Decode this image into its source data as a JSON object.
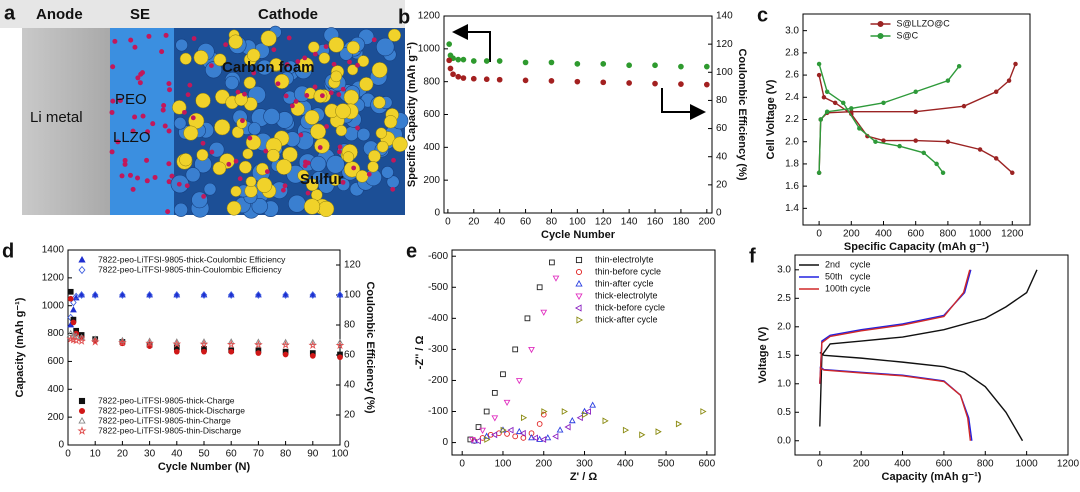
{
  "panel_a": {
    "panel": "a",
    "labels": {
      "anode": "Anode",
      "se": "SE",
      "cathode": "Cathode",
      "li_metal": "Li metal",
      "peo": "PEO",
      "llzo": "LLZO",
      "carbon_foam": "Carbon foam",
      "sulfur": "Sulfur"
    }
  },
  "chart_data": [
    {
      "type": "scatter",
      "panel": "b",
      "xlabel": "Cycle Number",
      "ylabel": "Specific Capacity (mAh g⁻¹)",
      "y2label": "Coulombic Efficiency (%)",
      "xlim": [
        -3,
        204
      ],
      "xticks": [
        0,
        20,
        40,
        60,
        80,
        100,
        120,
        140,
        160,
        180,
        200
      ],
      "ylim": [
        0,
        1200
      ],
      "yticks": [
        0,
        200,
        400,
        600,
        800,
        1000,
        1200
      ],
      "y2lim": [
        0,
        140
      ],
      "y2ticks": [
        0,
        20,
        40,
        60,
        80,
        100,
        120,
        140
      ],
      "series": [
        {
          "color": "#2e9a2e",
          "marker": "circle",
          "filled": true,
          "axis": "y2",
          "x": [
            1,
            2,
            4,
            8,
            12,
            20,
            30,
            40,
            60,
            80,
            100,
            120,
            140,
            160,
            180,
            200
          ],
          "values": [
            120,
            112,
            110,
            109,
            109,
            108,
            108,
            108,
            107,
            107,
            106,
            106,
            105,
            105,
            104,
            104
          ]
        },
        {
          "color": "#a32020",
          "marker": "circle",
          "filled": true,
          "x": [
            1,
            2,
            4,
            8,
            12,
            20,
            30,
            40,
            60,
            80,
            100,
            120,
            140,
            160,
            180,
            200
          ],
          "values": [
            930,
            880,
            845,
            830,
            822,
            818,
            815,
            812,
            808,
            805,
            800,
            796,
            792,
            788,
            785,
            782
          ]
        }
      ]
    },
    {
      "type": "scatter",
      "panel": "c",
      "xlabel": "Specific Capacity (mAh g⁻¹)",
      "ylabel": "Cell Voltage (V)",
      "xlim": [
        -100,
        1310
      ],
      "xticks": [
        0,
        200,
        400,
        600,
        800,
        1000,
        1200
      ],
      "ylim": [
        1.25,
        3.15
      ],
      "yticks": [
        1.4,
        1.6,
        1.8,
        {
          "value": 2,
          "label": "2.0"
        },
        2.2,
        2.4,
        2.6,
        2.8,
        {
          "value": 3,
          "label": "3.0"
        }
      ],
      "legend_loc": "upper center",
      "series": [
        {
          "name": "S@LLZO@C",
          "color": "#9b2323",
          "marker": "circle",
          "filled": true,
          "line": true,
          "x": [
            0,
            30,
            100,
            200,
            300,
            400,
            600,
            800,
            1000,
            1100,
            1200,
            null,
            0,
            10,
            50,
            200,
            600,
            900,
            1100,
            1180,
            1220
          ],
          "values": [
            2.6,
            2.4,
            2.35,
            2.25,
            2.05,
            2.01,
            2.01,
            2.0,
            1.93,
            1.85,
            1.72,
            null,
            1.72,
            2.2,
            2.26,
            2.27,
            2.27,
            2.32,
            2.45,
            2.55,
            2.7
          ]
        },
        {
          "name": "S@C",
          "color": "#2e9a3a",
          "marker": "circle",
          "filled": true,
          "line": true,
          "x": [
            0,
            50,
            150,
            250,
            350,
            500,
            650,
            730,
            770,
            null,
            0,
            10,
            50,
            200,
            400,
            600,
            800,
            870
          ],
          "values": [
            2.7,
            2.45,
            2.35,
            2.12,
            2.0,
            1.96,
            1.9,
            1.8,
            1.72,
            null,
            1.72,
            2.2,
            2.27,
            2.3,
            2.35,
            2.45,
            2.55,
            2.68
          ]
        }
      ]
    },
    {
      "type": "scatter",
      "panel": "d",
      "xlabel": "Cycle Number (N)",
      "ylabel": "Capacity (mAh g⁻¹)",
      "y2label": "Coulombic Efficiency (%)",
      "xlim": [
        0,
        100
      ],
      "xticks": [
        0,
        10,
        20,
        30,
        40,
        50,
        60,
        70,
        80,
        90,
        100
      ],
      "ylim": [
        0,
        1400
      ],
      "yticks": [
        0,
        200,
        400,
        600,
        800,
        1000,
        1200,
        1400
      ],
      "y2lim": [
        0,
        130
      ],
      "y2ticks": [
        0,
        20,
        40,
        60,
        80,
        100,
        120
      ],
      "legend_loc": {
        "y2": "upper left",
        "y": "lower left"
      },
      "series": [
        {
          "name": "7822-peo-LiTFSI-9805-thick-Coulombic Efficiency",
          "color": "#1f2fd0",
          "marker": "triangle",
          "filled": true,
          "axis": "y2",
          "x": [
            1,
            2,
            3,
            5,
            10,
            20,
            30,
            40,
            50,
            60,
            70,
            80,
            90,
            100
          ],
          "values": [
            80,
            90,
            98,
            100,
            100,
            100,
            100,
            100,
            100,
            100,
            100,
            100,
            100,
            100
          ]
        },
        {
          "name": "7822-peo-LiTFSI-9805-thin-Coulombic Efficiency",
          "color": "#3f5fe0",
          "marker": "diamond",
          "filled": false,
          "axis": "y2",
          "x": [
            1,
            2,
            3,
            5,
            10,
            20,
            30,
            40,
            50,
            60,
            70,
            80,
            90,
            100
          ],
          "values": [
            85,
            95,
            99,
            100,
            100,
            100,
            100,
            100,
            100,
            100,
            100,
            100,
            100,
            100
          ]
        },
        {
          "name": "7822-peo-LiTFSI-9805-thick-Charge",
          "color": "#111111",
          "marker": "square",
          "filled": true,
          "x": [
            1,
            2,
            3,
            5,
            10,
            20,
            30,
            40,
            50,
            60,
            70,
            80,
            90,
            100
          ],
          "values": [
            1100,
            900,
            820,
            790,
            760,
            740,
            720,
            700,
            690,
            680,
            680,
            670,
            660,
            650
          ]
        },
        {
          "name": "7822-peo-LiTFSI-9805-thick-Discharge",
          "color": "#d01818",
          "marker": "circle",
          "filled": true,
          "x": [
            1,
            2,
            3,
            5,
            10,
            20,
            30,
            40,
            50,
            60,
            70,
            80,
            90,
            100
          ],
          "values": [
            1050,
            880,
            800,
            770,
            750,
            730,
            710,
            670,
            670,
            670,
            660,
            650,
            640,
            630
          ]
        },
        {
          "name": "7822-peo-LiTFSI-9805-thin-Charge",
          "color": "#888888",
          "marker": "triangle",
          "filled": false,
          "x": [
            1,
            2,
            3,
            5,
            10,
            20,
            30,
            40,
            50,
            60,
            70,
            80,
            90,
            100
          ],
          "values": [
            800,
            790,
            780,
            770,
            760,
            750,
            745,
            740,
            740,
            740,
            738,
            736,
            735,
            735
          ]
        },
        {
          "name": "7822-peo-LiTFSI-9805-thin-Discharge",
          "color": "#e05050",
          "marker": "star",
          "filled": false,
          "x": [
            1,
            2,
            3,
            5,
            10,
            20,
            30,
            40,
            50,
            60,
            70,
            80,
            90,
            100
          ],
          "values": [
            760,
            755,
            750,
            745,
            740,
            735,
            730,
            725,
            724,
            722,
            720,
            718,
            716,
            715
          ]
        }
      ]
    },
    {
      "type": "scatter",
      "panel": "e",
      "xlabel": "Z' / Ω",
      "ylabel": "-Z'' / Ω",
      "xlim": [
        -25,
        620
      ],
      "xticks": [
        0,
        100,
        200,
        300,
        400,
        500,
        600
      ],
      "ylim": [
        40,
        -620
      ],
      "yticks": [
        -600,
        -500,
        -400,
        -300,
        -200,
        -100,
        0
      ],
      "legend_loc": "upper right",
      "series": [
        {
          "name": "thin-electrolyte",
          "color": "#222222",
          "marker": "square",
          "filled": false,
          "x": [
            20,
            40,
            60,
            80,
            100,
            130,
            160,
            190,
            220
          ],
          "values": [
            -10,
            -50,
            -100,
            -160,
            -220,
            -300,
            -400,
            -500,
            -580
          ]
        },
        {
          "name": "thin-before cycle",
          "color": "#e02020",
          "marker": "circle",
          "filled": false,
          "x": [
            30,
            50,
            70,
            90,
            110,
            130,
            150,
            170,
            190,
            200
          ],
          "values": [
            -5,
            -15,
            -25,
            -30,
            -28,
            -20,
            -15,
            -30,
            -60,
            -90
          ]
        },
        {
          "name": "thin-after cycle",
          "color": "#2a3fe0",
          "marker": "triangle",
          "filled": false,
          "x": [
            30,
            60,
            100,
            140,
            170,
            190,
            210,
            240,
            270,
            300,
            320
          ],
          "values": [
            -5,
            -20,
            -40,
            -35,
            -15,
            -10,
            -15,
            -40,
            -70,
            -100,
            -120
          ]
        },
        {
          "name": "thick-electrolyte",
          "color": "#e030c0",
          "marker": "triangle-down",
          "filled": false,
          "x": [
            25,
            50,
            80,
            110,
            140,
            170,
            200,
            230
          ],
          "values": [
            -10,
            -40,
            -80,
            -130,
            -200,
            -300,
            -420,
            -530
          ]
        },
        {
          "name": "thick-before cycle",
          "color": "#8a20c0",
          "marker": "triangle-left",
          "filled": false,
          "x": [
            40,
            80,
            120,
            150,
            180,
            200,
            230,
            260,
            290,
            310
          ],
          "values": [
            -5,
            -25,
            -40,
            -30,
            -15,
            -10,
            -20,
            -50,
            -80,
            -100
          ]
        },
        {
          "name": "thick-after cycle",
          "color": "#8a8a10",
          "marker": "triangle-right",
          "filled": false,
          "x": [
            60,
            100,
            150,
            200,
            250,
            300,
            350,
            400,
            440,
            480,
            530,
            590
          ],
          "values": [
            -10,
            -40,
            -80,
            -100,
            -100,
            -90,
            -70,
            -40,
            -25,
            -35,
            -60,
            -100
          ]
        }
      ]
    },
    {
      "type": "line",
      "panel": "f",
      "xlabel": "Capacity (mAh g⁻¹)",
      "ylabel": "Voltage (V)",
      "xlim": [
        -120,
        1200
      ],
      "xticks": [
        0,
        200,
        400,
        600,
        800,
        1000,
        1200
      ],
      "ylim": [
        -0.25,
        3.26
      ],
      "yticks": [
        {
          "value": 0,
          "label": "0.0"
        },
        0.5,
        {
          "value": 1,
          "label": "1.0"
        },
        1.5,
        {
          "value": 2,
          "label": "2.0"
        },
        2.5,
        {
          "value": 3,
          "label": "3.0"
        }
      ],
      "legend_loc": "upper left",
      "series": [
        {
          "name": "2nd    cycle",
          "color": "#111111",
          "line": true,
          "x": [
            0,
            20,
            200,
            400,
            600,
            700,
            800,
            900,
            980,
            null,
            0,
            10,
            50,
            200,
            400,
            600,
            800,
            900,
            1000,
            1050
          ],
          "values": [
            1.55,
            1.5,
            1.45,
            1.38,
            1.3,
            1.2,
            0.95,
            0.5,
            0,
            null,
            0.25,
            1.5,
            1.7,
            1.75,
            1.82,
            1.95,
            2.15,
            2.35,
            2.6,
            3
          ]
        },
        {
          "name": "50th   cycle",
          "color": "#2222e0",
          "line": true,
          "x": [
            0,
            20,
            200,
            400,
            600,
            680,
            720,
            735,
            null,
            0,
            10,
            50,
            200,
            400,
            600,
            700,
            730
          ],
          "values": [
            1.3,
            1.25,
            1.2,
            1.15,
            1.05,
            0.8,
            0.4,
            0,
            null,
            1,
            1.75,
            1.85,
            1.95,
            2.05,
            2.2,
            2.6,
            3
          ]
        },
        {
          "name": "100th cycle",
          "color": "#d02828",
          "line": true,
          "x": [
            0,
            20,
            200,
            400,
            600,
            680,
            715,
            728,
            null,
            0,
            10,
            50,
            200,
            400,
            600,
            695,
            725
          ],
          "values": [
            1.28,
            1.24,
            1.19,
            1.14,
            1.04,
            0.8,
            0.4,
            0,
            null,
            1,
            1.72,
            1.83,
            1.93,
            2.03,
            2.18,
            2.6,
            3
          ]
        }
      ]
    }
  ]
}
